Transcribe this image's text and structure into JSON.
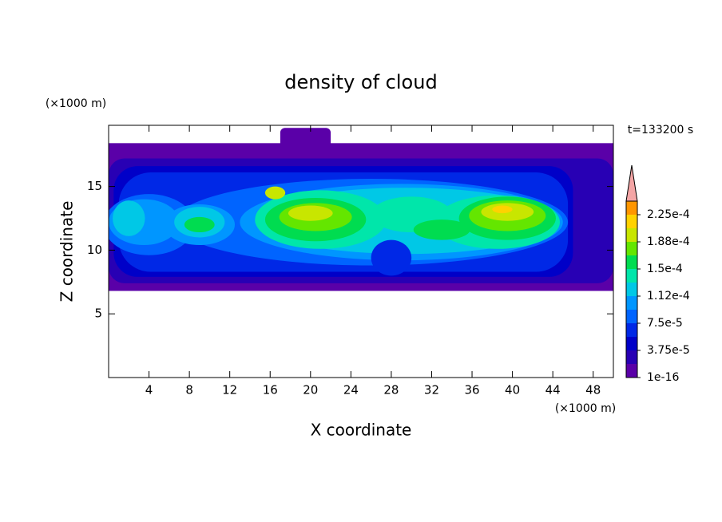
{
  "chart_data": {
    "type": "contour",
    "title": "density of cloud",
    "x_label": "X coordinate",
    "y_label": "Z coordinate",
    "x_unit": "(×1000 m)",
    "y_unit": "(×1000 m)",
    "annotation": "t=133200 s",
    "xlim": [
      0,
      50
    ],
    "ylim": [
      0,
      19.8
    ],
    "xticks": [
      4,
      8,
      12,
      16,
      20,
      24,
      28,
      32,
      36,
      40,
      44,
      48
    ],
    "yticks": [
      5,
      10,
      15
    ],
    "colorbar": {
      "clim": [
        0,
        0.00024375
      ],
      "levels": [
        1e-16,
        1.875e-05,
        3.75e-05,
        5.625e-05,
        7.5e-05,
        9.375e-05,
        0.0001125,
        0.00013125,
        0.00015,
        0.00016875,
        0.0001875,
        0.00020625,
        0.000225
      ],
      "colors": [
        "#5a00a8",
        "#2800b4",
        "#0000c8",
        "#0028e6",
        "#0064ff",
        "#0096ff",
        "#00c8e6",
        "#00e6aa",
        "#00dc50",
        "#64e600",
        "#c8e600",
        "#ffd200",
        "#ff9600"
      ],
      "extend_color": "#f4a5a5",
      "ticks": [
        {
          "value": 1e-16,
          "label": "1e-16"
        },
        {
          "value": 3.75e-05,
          "label": "3.75e-5"
        },
        {
          "value": 7.5e-05,
          "label": "7.5e-5"
        },
        {
          "value": 0.0001125,
          "label": "1.12e-4"
        },
        {
          "value": 0.00015,
          "label": "1.5e-4"
        },
        {
          "value": 0.0001875,
          "label": "1.88e-4"
        },
        {
          "value": 0.000225,
          "label": "2.25e-4"
        }
      ]
    }
  }
}
